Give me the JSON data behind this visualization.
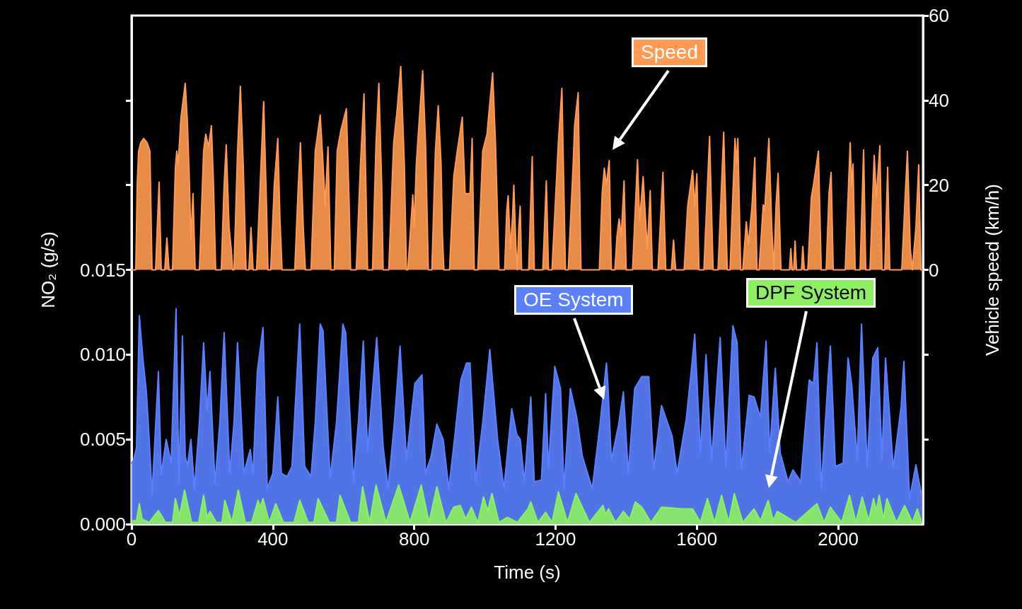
{
  "chart_data": {
    "type": "area",
    "xlabel": "Time (s)",
    "ylabel": "NO₂ (g/s)",
    "y2label": "Vehicle speed (km/h)",
    "xlim": [
      0,
      2240
    ],
    "xticks": [
      0,
      400,
      800,
      1200,
      1600,
      2000
    ],
    "ylim": [
      0,
      0.03
    ],
    "yticks": [
      {
        "value": 0,
        "label": "0.000"
      },
      0.005,
      {
        "value": 0.01,
        "label": "0.010"
      },
      0.015,
      {
        "value": 0.02,
        "label": null
      },
      {
        "value": 0.025,
        "label": null
      }
    ],
    "y2lim": [
      -60,
      60
    ],
    "y2ticks": [
      {
        "value": -40,
        "label": null
      },
      {
        "value": -20,
        "label": null
      },
      0,
      20,
      40,
      60
    ],
    "grid": false,
    "marker": "none",
    "line_style": "solid",
    "series": [
      {
        "name": "Speed",
        "color": "#ff9a50",
        "axis": "y2",
        "x": [
          0,
          12,
          16,
          20,
          26,
          34,
          44,
          52,
          58,
          68,
          78,
          84,
          94,
          100,
          106,
          116,
          124,
          128,
          132,
          140,
          152,
          158,
          164,
          168,
          174,
          180,
          192,
          204,
          210,
          218,
          226,
          232,
          238,
          254,
          262,
          268,
          276,
          282,
          286,
          290,
          300,
          308,
          316,
          324,
          332,
          338,
          344,
          354,
          364,
          374,
          382,
          386,
          394,
          404,
          414,
          420,
          426,
          462,
          472,
          478,
          486,
          492,
          508,
          520,
          534,
          542,
          548,
          556,
          564,
          574,
          582,
          592,
          608,
          616,
          620,
          636,
          648,
          658,
          668,
          682,
          692,
          700,
          708,
          712,
          728,
          742,
          752,
          762,
          772,
          778,
          782,
          794,
          796,
          800,
          806,
          814,
          824,
          832,
          840,
          850,
          860,
          868,
          876,
          880,
          884,
          900,
          912,
          922,
          936,
          944,
          950,
          958,
          964,
          970,
          980,
          994,
          1006,
          1022,
          1030,
          1040,
          1056,
          1062,
          1066,
          1072,
          1078,
          1082,
          1088,
          1092,
          1096,
          1100,
          1104,
          1124,
          1134,
          1140,
          1164,
          1174,
          1180,
          1190,
          1208,
          1218,
          1228,
          1236,
          1250,
          1254,
          1264,
          1272,
          1324,
          1332,
          1338,
          1344,
          1352,
          1358,
          1368,
          1374,
          1380,
          1386,
          1394,
          1400,
          1418,
          1432,
          1438,
          1448,
          1456,
          1460,
          1468,
          1474,
          1490,
          1504,
          1512,
          1528,
          1534,
          1540,
          1564,
          1574,
          1588,
          1594,
          1600,
          1606,
          1620,
          1636,
          1646,
          1660,
          1676,
          1686,
          1694,
          1708,
          1712,
          1716,
          1724,
          1730,
          1740,
          1746,
          1756,
          1764,
          1770,
          1776,
          1788,
          1792,
          1804,
          1812,
          1818,
          1824,
          1830,
          1838,
          1862,
          1866,
          1870,
          1874,
          1878,
          1882,
          1896,
          1900,
          1904,
          1914,
          1920,
          1924,
          1930,
          1944,
          1952,
          1966,
          1974,
          1980,
          1986,
          2020,
          2034,
          2038,
          2042,
          2048,
          2062,
          2072,
          2078,
          2090,
          2102,
          2108,
          2118,
          2124,
          2132,
          2140,
          2146,
          2180,
          2190,
          2196,
          2204,
          2210,
          2220,
          2228,
          2234,
          2238
        ],
        "values": [
          0,
          0,
          20,
          28,
          30,
          31,
          30,
          28,
          0,
          0,
          20.7,
          0,
          0,
          7.5,
          0,
          0,
          24,
          28,
          25,
          36,
          44,
          35,
          20,
          7,
          18,
          0,
          0,
          28,
          32,
          29,
          34,
          20,
          0,
          0,
          20,
          29.5,
          10,
          5,
          0,
          0,
          28,
          43.3,
          25,
          0,
          0,
          10,
          0,
          0,
          20,
          39.7,
          15,
          0,
          0,
          20,
          31,
          12,
          0,
          0,
          20,
          30,
          10,
          0,
          0,
          28,
          36.5,
          25,
          15,
          29,
          0,
          0,
          28,
          32.7,
          38,
          15,
          0,
          0,
          25,
          41.5,
          0,
          0,
          30,
          44,
          20,
          0,
          0,
          30,
          38,
          48,
          25,
          0,
          0,
          15,
          17.7,
          10,
          25,
          35,
          47,
          30,
          0,
          0,
          28,
          38.7,
          25,
          8,
          0,
          0,
          22,
          28,
          36,
          18,
          18,
          18,
          31,
          0,
          0,
          28,
          32,
          46.5,
          30,
          0,
          0,
          14,
          17.5,
          5,
          12,
          20,
          5,
          0,
          10,
          15,
          0,
          0,
          26.7,
          0,
          0,
          21,
          0,
          0,
          30,
          42.8,
          0,
          0,
          25,
          34,
          41.8,
          0,
          0,
          18,
          24,
          20,
          25.8,
          0,
          0,
          8,
          12,
          8,
          21,
          0,
          0,
          26,
          11.5,
          22,
          10,
          5,
          18.7,
          0,
          0,
          23,
          0,
          0,
          7,
          0,
          0,
          15,
          23.5,
          15,
          22.7,
          0,
          0,
          31.5,
          0,
          0,
          32.5,
          0,
          0,
          31,
          25,
          31,
          0,
          0,
          11.3,
          6,
          15,
          26.5,
          0,
          0,
          15.3,
          14,
          31,
          10,
          0,
          15,
          22.8,
          0,
          0,
          5,
          0,
          0,
          6.8,
          0,
          0,
          5.5,
          0,
          0,
          10,
          17,
          20,
          28,
          0,
          0,
          18,
          23,
          0,
          0,
          30,
          20,
          25,
          0,
          0,
          28.3,
          0,
          0,
          27,
          17,
          29.3,
          0,
          0,
          24.2,
          0,
          0,
          18,
          28,
          5,
          0,
          10,
          24.8,
          0,
          0
        ]
      },
      {
        "name": "OE System",
        "color": "#5a80ff",
        "x": [
          0,
          6,
          14,
          22,
          32,
          42,
          50,
          58,
          76,
          84,
          98,
          112,
          126,
          134,
          144,
          152,
          158,
          168,
          178,
          192,
          204,
          214,
          222,
          236,
          250,
          262,
          278,
          290,
          300,
          318,
          336,
          344,
          356,
          372,
          384,
          400,
          414,
          424,
          440,
          454,
          476,
          490,
          508,
          520,
          534,
          542,
          562,
          580,
          598,
          606,
          628,
          642,
          656,
          668,
          694,
          712,
          726,
          744,
          760,
          778,
          802,
          822,
          832,
          848,
          864,
          882,
          898,
          914,
          932,
          948,
          958,
          974,
          994,
          1014,
          1036,
          1054,
          1076,
          1090,
          1100,
          1112,
          1130,
          1140,
          1160,
          1172,
          1180,
          1198,
          1214,
          1224,
          1242,
          1260,
          1276,
          1304,
          1326,
          1344,
          1348,
          1358,
          1378,
          1392,
          1406,
          1424,
          1444,
          1464,
          1478,
          1500,
          1530,
          1544,
          1570,
          1584,
          1594,
          1610,
          1626,
          1642,
          1666,
          1682,
          1702,
          1714,
          1726,
          1748,
          1762,
          1780,
          1796,
          1806,
          1822,
          1836,
          1858,
          1872,
          1894,
          1918,
          1930,
          1940,
          1952,
          1972,
          1978,
          1992,
          2014,
          2028,
          2038,
          2054,
          2066,
          2082,
          2098,
          2112,
          2124,
          2134,
          2156,
          2178,
          2186,
          2202,
          2220,
          2236
        ],
        "values": [
          0.0036,
          0.0038,
          0.0045,
          0.0123,
          0.0098,
          0.0078,
          0.005,
          0.0017,
          0.009,
          0.0029,
          0.005,
          0.0036,
          0.0127,
          0.0025,
          0.0111,
          0.004,
          0.0034,
          0.005,
          0.0021,
          0.006,
          0.0107,
          0.0067,
          0.009,
          0.0024,
          0.006,
          0.0113,
          0.003,
          0.006,
          0.0107,
          0.003,
          0.0044,
          0.003,
          0.009,
          0.0116,
          0.0021,
          0.003,
          0.0075,
          0.003,
          0.0028,
          0.0034,
          0.0118,
          0.0034,
          0.0028,
          0.006,
          0.0118,
          0.0114,
          0.0027,
          0.006,
          0.0118,
          0.0113,
          0.0025,
          0.006,
          0.0108,
          0.0043,
          0.011,
          0.0046,
          0.0021,
          0.006,
          0.0105,
          0.0038,
          0.0083,
          0.0088,
          0.003,
          0.004,
          0.0059,
          0.005,
          0.0021,
          0.005,
          0.0085,
          0.0095,
          0.0095,
          0.0025,
          0.006,
          0.0103,
          0.005,
          0.0021,
          0.0068,
          0.0053,
          0.005,
          0.0025,
          0.0075,
          0.0025,
          0.0026,
          0.0077,
          0.0033,
          0.0093,
          0.008,
          0.0021,
          0.008,
          0.0063,
          0.004,
          0.0021,
          0.0059,
          0.0095,
          0.0083,
          0.0038,
          0.0058,
          0.0078,
          0.003,
          0.008,
          0.0087,
          0.0087,
          0.0032,
          0.007,
          0.0052,
          0.003,
          0.0062,
          0.009,
          0.0112,
          0.0042,
          0.01,
          0.0038,
          0.011,
          0.0034,
          0.0117,
          0.0107,
          0.0032,
          0.0076,
          0.0075,
          0.0063,
          0.0108,
          0.0042,
          0.0092,
          0.0042,
          0.0025,
          0.0032,
          0.0025,
          0.0085,
          0.0083,
          0.0107,
          0.0021,
          0.0088,
          0.0105,
          0.0034,
          0.0036,
          0.0098,
          0.0083,
          0.0038,
          0.0118,
          0.0034,
          0.0098,
          0.0104,
          0.0038,
          0.0098,
          0.0033,
          0.0069,
          0.0096,
          0.0015,
          0.0035,
          0.0017
        ]
      },
      {
        "name": "DPF System",
        "color": "#8cf060",
        "x": [
          0,
          14,
          22,
          30,
          50,
          76,
          96,
          116,
          124,
          136,
          150,
          170,
          190,
          204,
          214,
          222,
          240,
          256,
          264,
          284,
          302,
          322,
          340,
          358,
          364,
          372,
          390,
          408,
          430,
          460,
          476,
          500,
          516,
          528,
          560,
          580,
          590,
          620,
          642,
          654,
          674,
          692,
          720,
          756,
          788,
          820,
          842,
          864,
          890,
          912,
          930,
          946,
          962,
          980,
          996,
          1008,
          1020,
          1040,
          1064,
          1092,
          1122,
          1130,
          1150,
          1172,
          1190,
          1208,
          1234,
          1258,
          1296,
          1334,
          1342,
          1350,
          1370,
          1392,
          1410,
          1426,
          1444,
          1470,
          1500,
          1560,
          1588,
          1610,
          1630,
          1650,
          1670,
          1690,
          1706,
          1730,
          1762,
          1780,
          1802,
          1816,
          1828,
          1880,
          1940,
          1960,
          1978,
          2010,
          2032,
          2050,
          2068,
          2086,
          2100,
          2108,
          2116,
          2128,
          2138,
          2165,
          2188,
          2210,
          2224,
          2236
        ],
        "values": [
          0.0002,
          0.0002,
          0.0012,
          0.0003,
          0.0001,
          0.0008,
          0.0001,
          0.0001,
          0.0015,
          0.0005,
          0.002,
          0.0001,
          0.0001,
          0.0017,
          0.0004,
          0.00075,
          0.0001,
          0.0001,
          0.0014,
          0.0001,
          0.002,
          0.0001,
          0.0001,
          0.0014,
          0.001,
          0.0015,
          0.0001,
          0.0012,
          0.0001,
          0.0001,
          0.0014,
          0.0001,
          0.0001,
          0.0015,
          0.0001,
          0.0001,
          0.0017,
          0.0001,
          0.0001,
          0.0022,
          0.0001,
          0.0023,
          0.0001,
          0.0023,
          0.0001,
          0.0023,
          0.0001,
          0.0022,
          0.0001,
          0.001,
          0.0011,
          0.0003,
          0.001,
          0.0001,
          0.0016,
          0.0008,
          0.0018,
          0.0001,
          0.0004,
          0.0001,
          0.0009,
          0.0013,
          0.0001,
          0.0007,
          0.0001,
          0.0019,
          0.0001,
          0.0018,
          0.0001,
          0.0011,
          0.0006,
          0.0009,
          0.0001,
          0.00075,
          0.0003,
          0.0013,
          0.001,
          0.0001,
          0.001,
          0.0009,
          0.0009,
          0.0001,
          0.0015,
          0.0001,
          0.0017,
          0.0001,
          0.0018,
          0.0001,
          0.0009,
          0.0002,
          0.0014,
          0.0002,
          0.00075,
          0.0001,
          0.0012,
          0.0001,
          0.001,
          0.0001,
          0.0017,
          0.0001,
          0.0016,
          0.0002,
          0.0015,
          0.0008,
          0.0017,
          0.0003,
          0.0015,
          0.0001,
          0.0011,
          0.0001,
          0.0009,
          0.0001
        ]
      }
    ]
  }
}
